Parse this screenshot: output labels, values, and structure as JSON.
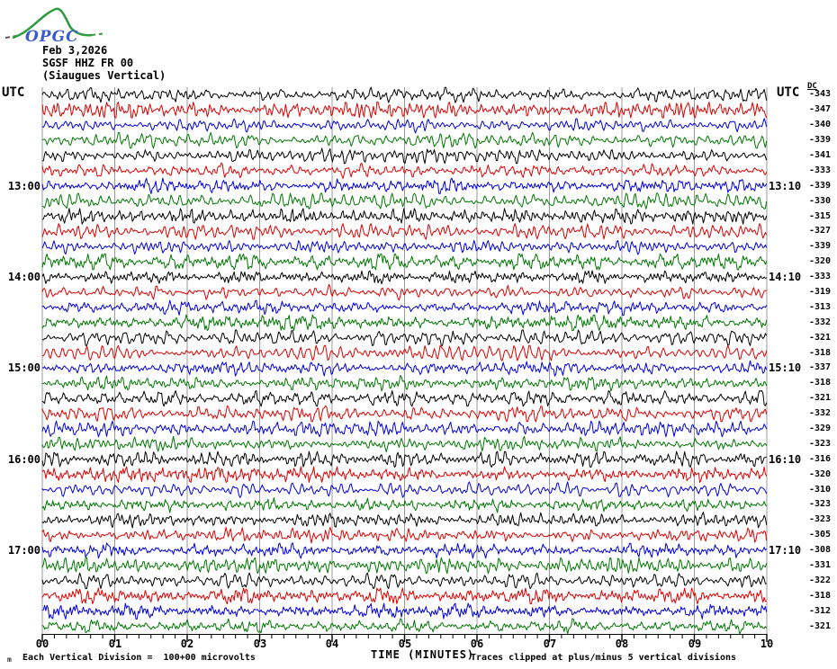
{
  "logo": {
    "text": "OPGC",
    "curve_color": "#2e9b3e",
    "text_color": "#3b5bd0"
  },
  "header": {
    "date": "Feb 3,2026",
    "station_code": "SGSF HHZ FR 00",
    "station_name": "(Siaugues Vertical)"
  },
  "labels": {
    "utc_left": "UTC",
    "utc_right": "UTC",
    "dc_header": "DC",
    "corner_mark": "m"
  },
  "footer": {
    "scale_note": "Each Vertical Division =  100+00 microvolts",
    "axis_title": "TIME (MINUTES)",
    "clip_note": "Traces clipped at plus/minus 5 vertical divisions"
  },
  "chart_data": {
    "type": "line",
    "title": "Helicorder SGSF HHZ FR 00 (Siaugues Vertical) Feb 3,2026",
    "xlabel": "TIME (MINUTES)",
    "x_ticks": [
      "00",
      "01",
      "02",
      "03",
      "04",
      "05",
      "06",
      "07",
      "08",
      "09",
      "10"
    ],
    "x_range_minutes": [
      0,
      10
    ],
    "minor_ticks_per_division": 6,
    "minutes_per_row": 10,
    "grid": "vertical-only",
    "grid_color": "#999999",
    "row_color_cycle": [
      "#000000",
      "#dd0000",
      "#0000dd",
      "#007700"
    ],
    "clip_divisions": 5,
    "rows": [
      {
        "dc": -343
      },
      {
        "dc": -347
      },
      {
        "dc": -340
      },
      {
        "dc": -339
      },
      {
        "dc": -341
      },
      {
        "dc": -333
      },
      {
        "dc": -339,
        "left": "13:00",
        "right": "13:10"
      },
      {
        "dc": -330
      },
      {
        "dc": -315
      },
      {
        "dc": -327
      },
      {
        "dc": -339
      },
      {
        "dc": -320
      },
      {
        "dc": -333,
        "left": "14:00",
        "right": "14:10"
      },
      {
        "dc": -319
      },
      {
        "dc": -313
      },
      {
        "dc": -332
      },
      {
        "dc": -321
      },
      {
        "dc": -318
      },
      {
        "dc": -337,
        "left": "15:00",
        "right": "15:10"
      },
      {
        "dc": -318
      },
      {
        "dc": -321
      },
      {
        "dc": -332
      },
      {
        "dc": -329
      },
      {
        "dc": -323
      },
      {
        "dc": -316,
        "left": "16:00",
        "right": "16:10"
      },
      {
        "dc": -320
      },
      {
        "dc": -310
      },
      {
        "dc": -323
      },
      {
        "dc": -323
      },
      {
        "dc": -305
      },
      {
        "dc": -308,
        "left": "17:00",
        "right": "17:10"
      },
      {
        "dc": -331
      },
      {
        "dc": -322
      },
      {
        "dc": -318
      },
      {
        "dc": -312
      },
      {
        "dc": -321
      }
    ]
  }
}
